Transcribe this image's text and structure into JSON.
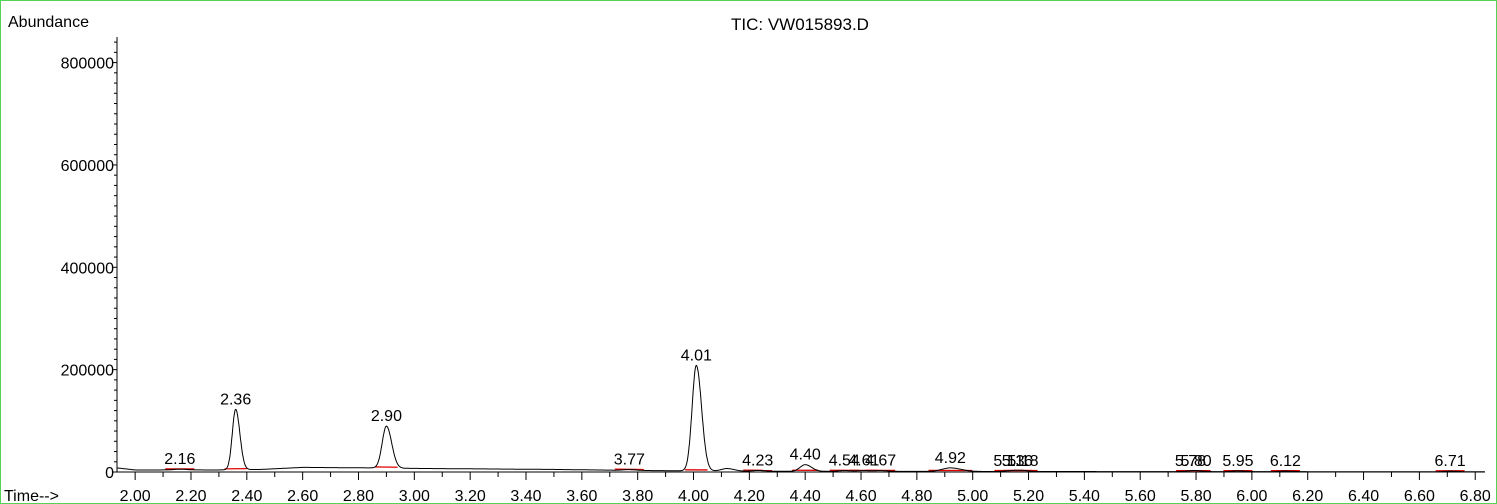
{
  "chart_data": {
    "type": "line",
    "title": "TIC: VW015893.D",
    "ylabel": "Abundance",
    "xlabel": "Time-->",
    "xlim": [
      1.935,
      6.835
    ],
    "ylim": [
      0,
      850000
    ],
    "x_ticks": [
      "2.00",
      "2.20",
      "2.40",
      "2.60",
      "2.80",
      "3.00",
      "3.20",
      "3.40",
      "3.60",
      "3.80",
      "4.00",
      "4.20",
      "4.40",
      "4.60",
      "4.80",
      "5.00",
      "5.20",
      "5.40",
      "5.60",
      "5.80",
      "6.00",
      "6.20",
      "6.40",
      "6.60",
      "6.80"
    ],
    "y_ticks": [
      "0",
      "200000",
      "400000",
      "600000",
      "800000"
    ],
    "baseline": [
      [
        1.935,
        8000
      ],
      [
        2.0,
        4000
      ],
      [
        2.3,
        4000
      ],
      [
        2.45,
        5000
      ],
      [
        2.6,
        9000
      ],
      [
        2.85,
        8000
      ],
      [
        3.0,
        7000
      ],
      [
        3.5,
        5000
      ],
      [
        3.8,
        3000
      ],
      [
        4.2,
        1500
      ],
      [
        5.0,
        1000
      ],
      [
        6.835,
        500
      ]
    ],
    "peaks": [
      {
        "label": "2.16",
        "rt": 2.16,
        "height": 1500,
        "width": 0.02
      },
      {
        "label": "2.36",
        "rt": 2.36,
        "height": 118000,
        "width": 0.012
      },
      {
        "label": "2.90",
        "rt": 2.9,
        "height": 82000,
        "width": 0.015
      },
      {
        "label": "3.77",
        "rt": 3.77,
        "height": 1500,
        "width": 0.02
      },
      {
        "label": "4.01",
        "rt": 4.01,
        "height": 206000,
        "width": 0.015
      },
      {
        "label": "4.23",
        "rt": 4.23,
        "height": 1500,
        "width": 0.02
      },
      {
        "label": "4.40",
        "rt": 4.4,
        "height": 13000,
        "width": 0.018
      },
      {
        "label": "4.54",
        "rt": 4.54,
        "height": 1500,
        "width": 0.02
      },
      {
        "label": "4.61",
        "rt": 4.61,
        "height": 1500,
        "width": 0.02
      },
      {
        "label": "4.67",
        "rt": 4.67,
        "height": 1500,
        "width": 0.02
      },
      {
        "label": "4.92",
        "rt": 4.92,
        "height": 7000,
        "width": 0.03
      },
      {
        "label": "5.13",
        "rt": 5.13,
        "height": 1200,
        "width": 0.02
      },
      {
        "label": "5.16",
        "rt": 5.16,
        "height": 1200,
        "width": 0.02
      },
      {
        "label": "5.18",
        "rt": 5.18,
        "height": 1200,
        "width": 0.02
      },
      {
        "label": "5.78",
        "rt": 5.78,
        "height": 1200,
        "width": 0.02
      },
      {
        "label": "5.80",
        "rt": 5.8,
        "height": 1200,
        "width": 0.02
      },
      {
        "label": "5.95",
        "rt": 5.95,
        "height": 1500,
        "width": 0.02
      },
      {
        "label": "6.12",
        "rt": 6.12,
        "height": 1200,
        "width": 0.02
      },
      {
        "label": "6.71",
        "rt": 6.71,
        "height": 1200,
        "width": 0.02
      }
    ],
    "extra_bumps": [
      {
        "rt": 4.12,
        "height": 5000,
        "width": 0.02
      }
    ],
    "line_color": "#000000",
    "integration_color": "#e00000",
    "frame_color": "#54d354"
  }
}
